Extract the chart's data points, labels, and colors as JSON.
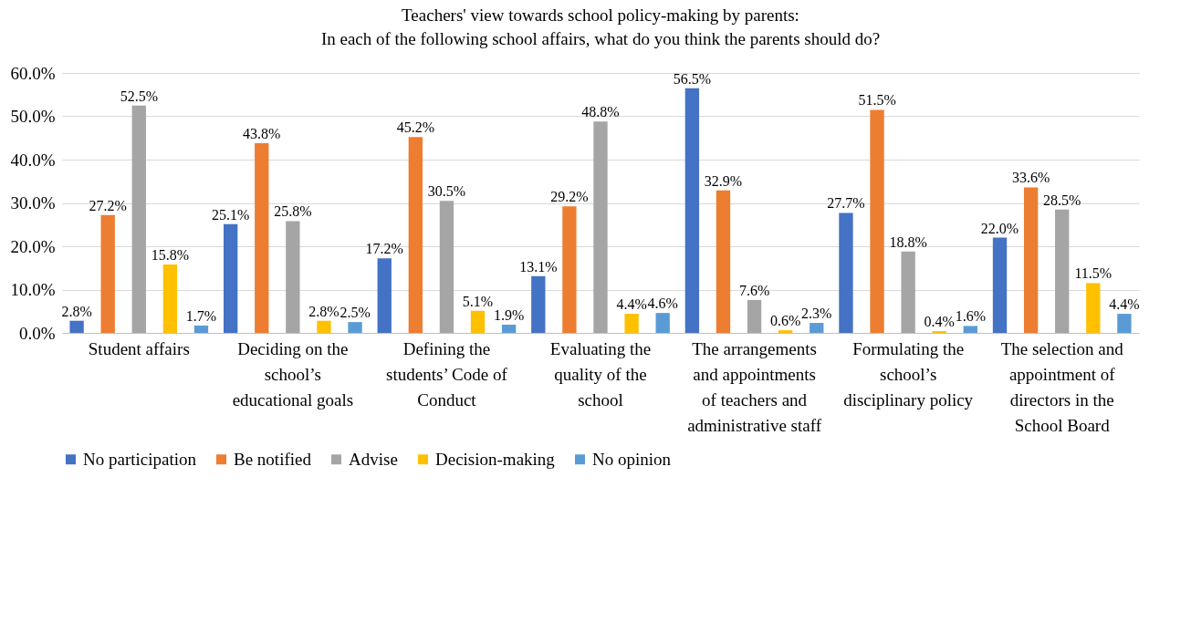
{
  "chart_data": {
    "type": "bar",
    "title": "Teachers' view towards school policy-making by parents:\nIn each of the following school affairs, what do you think the parents should do?",
    "categories": [
      "Student affairs",
      "Deciding on the school’s educational goals",
      "Defining the students’ Code of Conduct",
      "Evaluating the quality of the school",
      "The arrangements and appointments of teachers and administrative staff",
      "Formulating the school’s disciplinary policy",
      "The selection and appointment of directors in the School Board"
    ],
    "series": [
      {
        "name": "No participation",
        "color": "#4472c4",
        "values": [
          2.8,
          25.1,
          17.2,
          13.1,
          56.5,
          27.7,
          22.0
        ],
        "value_labels": [
          "2.8%",
          "25.1%",
          "17.2%",
          "13.1%",
          "56.5%",
          "27.7%",
          "22.0%"
        ]
      },
      {
        "name": "Be notified",
        "color": "#ed7d31",
        "values": [
          27.2,
          43.8,
          45.2,
          29.2,
          32.9,
          51.5,
          33.6
        ],
        "value_labels": [
          "27.2%",
          "43.8%",
          "45.2%",
          "29.2%",
          "32.9%",
          "51.5%",
          "33.6%"
        ]
      },
      {
        "name": "Advise",
        "color": "#a5a5a5",
        "values": [
          52.5,
          25.8,
          30.5,
          48.8,
          7.6,
          18.8,
          28.5
        ],
        "value_labels": [
          "52.5%",
          "25.8%",
          "30.5%",
          "48.8%",
          "7.6%",
          "18.8%",
          "28.5%"
        ]
      },
      {
        "name": "Decision-making",
        "color": "#ffc000",
        "values": [
          15.8,
          2.8,
          5.1,
          4.4,
          0.6,
          0.4,
          11.5
        ],
        "value_labels": [
          "15.8%",
          "2.8%",
          "5.1%",
          "4.4%",
          "0.6%",
          "0.4%",
          "11.5%"
        ]
      },
      {
        "name": "No opinion",
        "color": "#5b9bd5",
        "values": [
          1.7,
          2.5,
          1.9,
          4.6,
          2.3,
          1.6,
          4.4
        ],
        "value_labels": [
          "1.7%",
          "2.5%",
          "1.9%",
          "4.6%",
          "2.3%",
          "1.6%",
          "4.4%"
        ]
      }
    ],
    "ylim": [
      0,
      60
    ],
    "yticks": [
      {
        "value": 0,
        "label": "0.0%"
      },
      {
        "value": 10,
        "label": "10.0%"
      },
      {
        "value": 20,
        "label": "20.0%"
      },
      {
        "value": 30,
        "label": "30.0%"
      },
      {
        "value": 40,
        "label": "40.0%"
      },
      {
        "value": 50,
        "label": "50.0%"
      },
      {
        "value": 60,
        "label": "60.0%"
      }
    ],
    "grid": "y",
    "legend": "bottom"
  }
}
